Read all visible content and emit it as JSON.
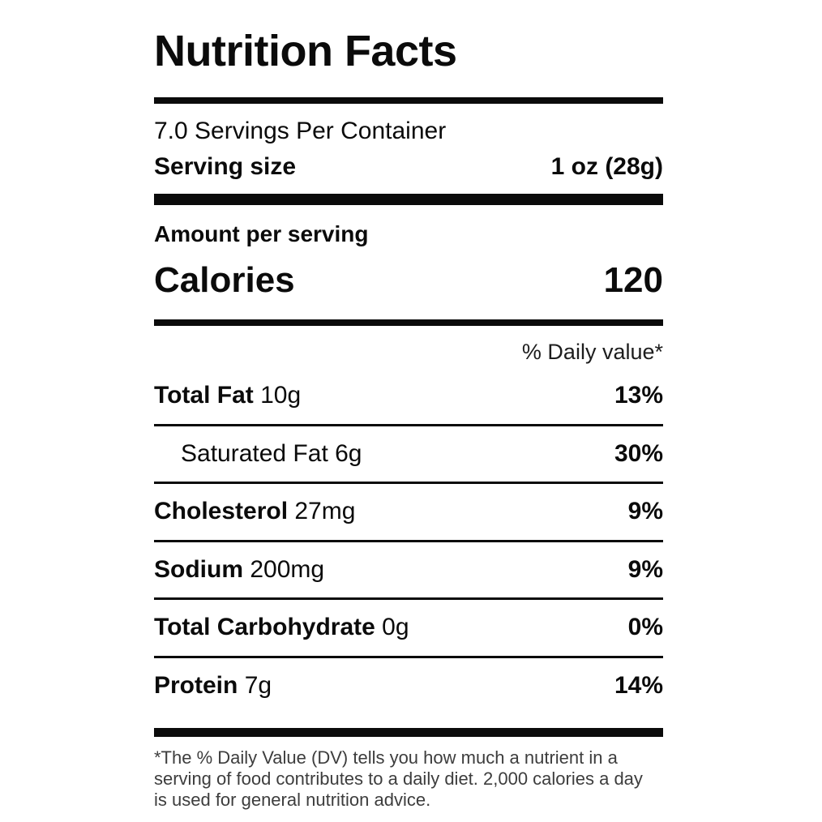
{
  "label": {
    "title": "Nutrition Facts",
    "servings_per_container": "7.0 Servings Per Container",
    "serving_size_label": "Serving size",
    "serving_size_value": "1 oz (28g)",
    "amount_per_serving": "Amount per serving",
    "calories_label": "Calories",
    "calories_value": "120",
    "daily_value_header": "% Daily value*",
    "nutrients": [
      {
        "name": "Total Fat",
        "amount": "10g",
        "dv": "13%",
        "indent": false
      },
      {
        "name": "Saturated Fat",
        "amount": "6g",
        "dv": "30%",
        "indent": true
      },
      {
        "name": "Cholesterol",
        "amount": "27mg",
        "dv": "9%",
        "indent": false
      },
      {
        "name": "Sodium",
        "amount": "200mg",
        "dv": "9%",
        "indent": false
      },
      {
        "name": "Total Carbohydrate",
        "amount": "0g",
        "dv": "0%",
        "indent": false
      },
      {
        "name": "Protein",
        "amount": "7g",
        "dv": "14%",
        "indent": false
      }
    ],
    "footnote": "*The % Daily Value (DV) tells you how much a nutrient in a serving of food contributes to a daily diet. 2,000 calories a day is used for general nutrition advice.",
    "colors": {
      "text": "#0b0b0b",
      "footnote_text": "#3d3d3d",
      "bars": "#0b0b0b",
      "background": "#ffffff"
    }
  }
}
